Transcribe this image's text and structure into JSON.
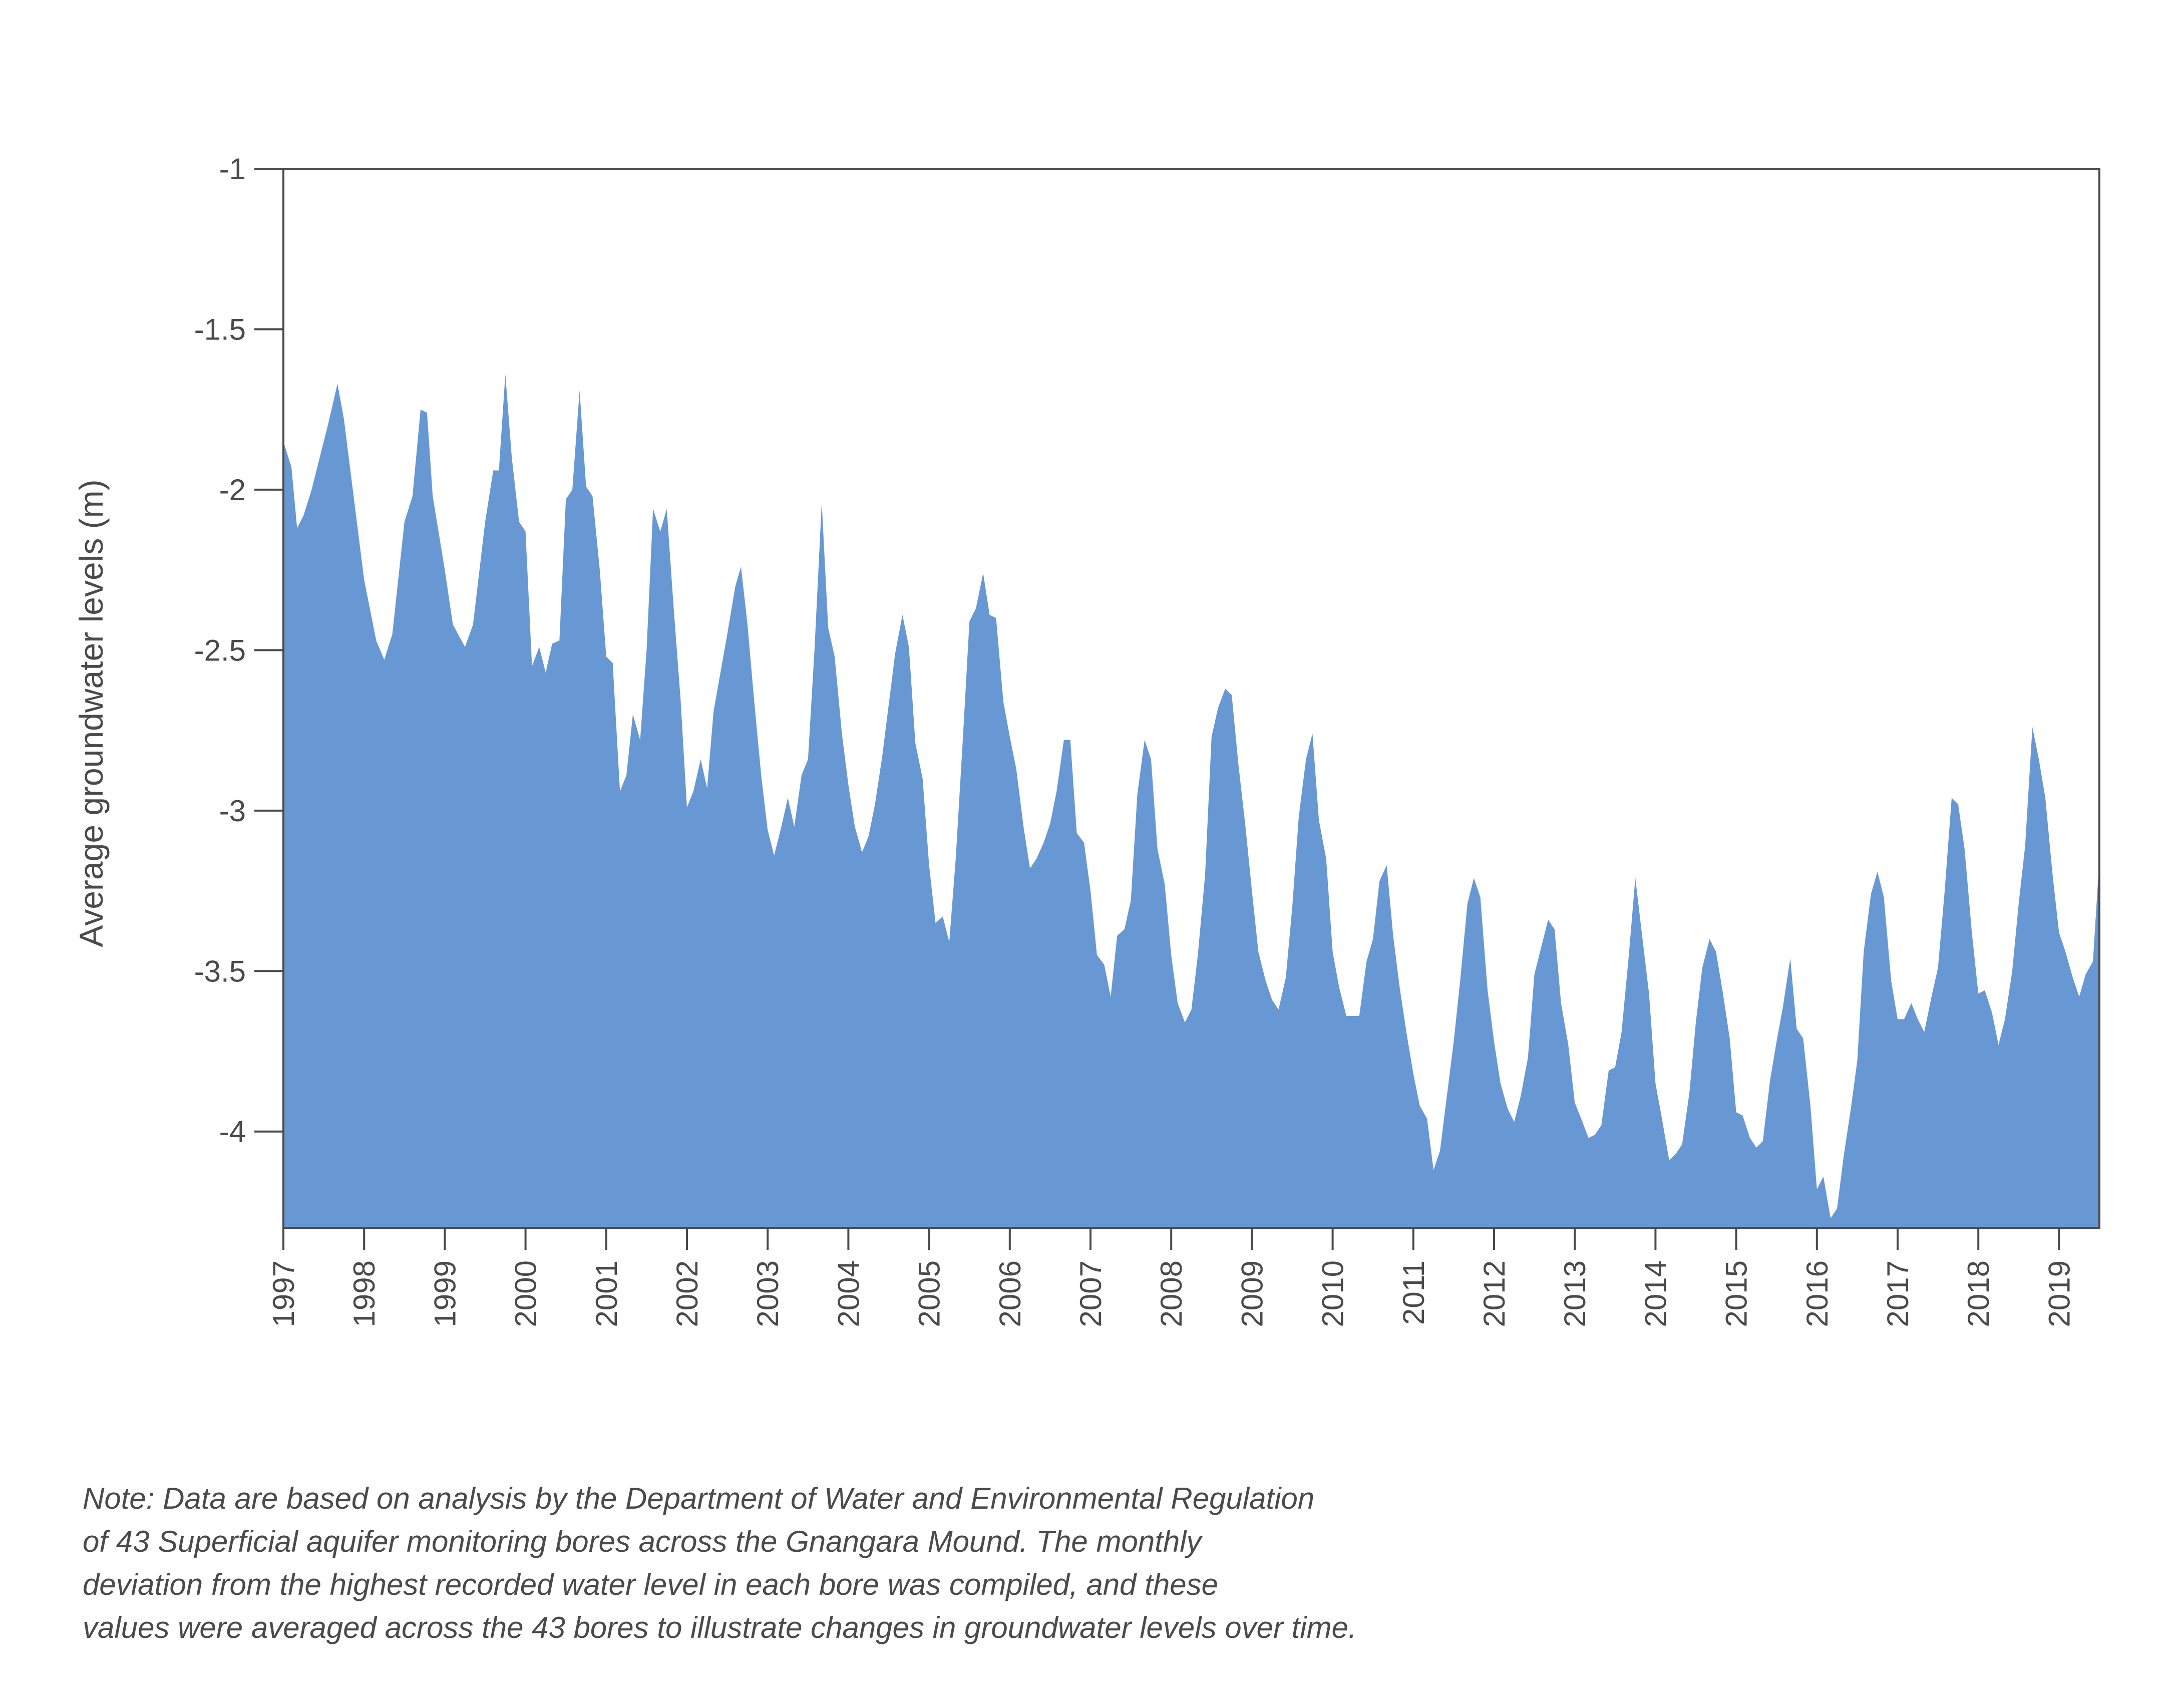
{
  "chart_data": {
    "type": "area",
    "title": "",
    "ylabel": "Average groundwater levels (m)",
    "xlabel": "",
    "ylim": [
      -4.3,
      -1
    ],
    "yticks": [
      -1,
      -1.5,
      -2,
      -2.5,
      -3,
      -3.5,
      -4
    ],
    "ytick_labels": [
      "-1",
      "-1.5",
      "-2",
      "-2.5",
      "-3",
      "-3.5",
      "-4"
    ],
    "xlim": [
      1997,
      2019.5
    ],
    "xticks": [
      1997,
      1998,
      1999,
      2000,
      2001,
      2002,
      2003,
      2004,
      2005,
      2006,
      2007,
      2008,
      2009,
      2010,
      2011,
      2012,
      2013,
      2014,
      2015,
      2016,
      2017,
      2018,
      2019
    ],
    "xtick_labels": [
      "1997",
      "1998",
      "1999",
      "2000",
      "2001",
      "2002",
      "2003",
      "2004",
      "2005",
      "2006",
      "2007",
      "2008",
      "2009",
      "2010",
      "2011",
      "2012",
      "2013",
      "2014",
      "2015",
      "2016",
      "2017",
      "2018",
      "2019"
    ],
    "fill_color": "#6898d4",
    "grid": false,
    "series": [
      {
        "x": [
          1997.0,
          1997.1,
          1997.17,
          1997.25,
          1997.35,
          1997.45,
          1997.55,
          1997.67,
          1997.75,
          1997.85,
          1998.0,
          1998.15,
          1998.25,
          1998.35,
          1998.5,
          1998.6,
          1998.7,
          1998.78,
          1998.85,
          1999.0,
          1999.1,
          1999.25,
          1999.35,
          1999.5,
          1999.6,
          1999.67,
          1999.75,
          1999.83,
          1999.92,
          2000.0,
          2000.08,
          2000.17,
          2000.25,
          2000.33,
          2000.42,
          2000.5,
          2000.58,
          2000.67,
          2000.75,
          2000.83,
          2000.92,
          2001.0,
          2001.08,
          2001.17,
          2001.25,
          2001.33,
          2001.42,
          2001.5,
          2001.58,
          2001.67,
          2001.75,
          2001.83,
          2001.92,
          2002.0,
          2002.08,
          2002.17,
          2002.25,
          2002.33,
          2002.5,
          2002.6,
          2002.67,
          2002.75,
          2002.83,
          2002.92,
          2003.0,
          2003.08,
          2003.17,
          2003.25,
          2003.33,
          2003.42,
          2003.5,
          2003.58,
          2003.67,
          2003.75,
          2003.83,
          2003.92,
          2004.0,
          2004.08,
          2004.17,
          2004.25,
          2004.33,
          2004.42,
          2004.5,
          2004.58,
          2004.67,
          2004.75,
          2004.83,
          2004.92,
          2005.0,
          2005.08,
          2005.17,
          2005.25,
          2005.33,
          2005.42,
          2005.5,
          2005.58,
          2005.67,
          2005.75,
          2005.83,
          2005.92,
          2006.0,
          2006.08,
          2006.17,
          2006.25,
          2006.33,
          2006.42,
          2006.5,
          2006.58,
          2006.67,
          2006.75,
          2006.83,
          2006.92,
          2007.0,
          2007.08,
          2007.17,
          2007.25,
          2007.33,
          2007.42,
          2007.5,
          2007.58,
          2007.67,
          2007.75,
          2007.83,
          2007.92,
          2008.0,
          2008.08,
          2008.17,
          2008.25,
          2008.33,
          2008.42,
          2008.5,
          2008.58,
          2008.67,
          2008.75,
          2008.83,
          2008.92,
          2009.0,
          2009.08,
          2009.17,
          2009.25,
          2009.33,
          2009.42,
          2009.5,
          2009.58,
          2009.67,
          2009.75,
          2009.83,
          2009.92,
          2010.0,
          2010.08,
          2010.17,
          2010.25,
          2010.33,
          2010.42,
          2010.5,
          2010.58,
          2010.67,
          2010.75,
          2010.83,
          2010.92,
          2011.0,
          2011.08,
          2011.17,
          2011.25,
          2011.33,
          2011.42,
          2011.5,
          2011.58,
          2011.67,
          2011.75,
          2011.83,
          2011.92,
          2012.0,
          2012.08,
          2012.17,
          2012.25,
          2012.33,
          2012.42,
          2012.5,
          2012.58,
          2012.67,
          2012.75,
          2012.83,
          2012.92,
          2013.0,
          2013.08,
          2013.17,
          2013.25,
          2013.33,
          2013.42,
          2013.5,
          2013.58,
          2013.67,
          2013.75,
          2013.83,
          2013.92,
          2014.0,
          2014.08,
          2014.17,
          2014.25,
          2014.33,
          2014.42,
          2014.5,
          2014.58,
          2014.67,
          2014.75,
          2014.83,
          2014.92,
          2015.0,
          2015.08,
          2015.17,
          2015.25,
          2015.33,
          2015.42,
          2015.5,
          2015.58,
          2015.67,
          2015.75,
          2015.83,
          2015.92,
          2016.0,
          2016.08,
          2016.17,
          2016.25,
          2016.33,
          2016.42,
          2016.5,
          2016.58,
          2016.67,
          2016.75,
          2016.83,
          2016.92,
          2017.0,
          2017.08,
          2017.17,
          2017.25,
          2017.33,
          2017.42,
          2017.5,
          2017.58,
          2017.67,
          2017.75,
          2017.83,
          2017.92,
          2018.0,
          2018.08,
          2018.17,
          2018.25,
          2018.33,
          2018.42,
          2018.5,
          2018.58,
          2018.67,
          2018.75,
          2018.83,
          2018.92,
          2019.0,
          2019.08,
          2019.17,
          2019.25,
          2019.33,
          2019.42,
          2019.5
        ],
        "y": [
          -1.85,
          -1.93,
          -2.12,
          -2.08,
          -2.0,
          -1.9,
          -1.8,
          -1.67,
          -1.78,
          -1.98,
          -2.28,
          -2.47,
          -2.53,
          -2.45,
          -2.1,
          -2.02,
          -1.75,
          -1.76,
          -2.02,
          -2.25,
          -2.42,
          -2.49,
          -2.42,
          -2.1,
          -1.94,
          -1.94,
          -1.64,
          -1.9,
          -2.1,
          -2.13,
          -2.55,
          -2.49,
          -2.57,
          -2.48,
          -2.47,
          -2.03,
          -2.0,
          -1.69,
          -1.99,
          -2.02,
          -2.25,
          -2.52,
          -2.54,
          -2.94,
          -2.89,
          -2.7,
          -2.78,
          -2.5,
          -2.06,
          -2.13,
          -2.06,
          -2.35,
          -2.65,
          -2.99,
          -2.94,
          -2.84,
          -2.93,
          -2.69,
          -2.45,
          -2.3,
          -2.24,
          -2.42,
          -2.65,
          -2.89,
          -3.06,
          -3.14,
          -3.05,
          -2.96,
          -3.05,
          -2.89,
          -2.84,
          -2.5,
          -2.04,
          -2.43,
          -2.52,
          -2.76,
          -2.92,
          -3.05,
          -3.13,
          -3.08,
          -2.98,
          -2.83,
          -2.67,
          -2.51,
          -2.39,
          -2.49,
          -2.79,
          -2.9,
          -3.17,
          -3.35,
          -3.33,
          -3.41,
          -3.15,
          -2.77,
          -2.41,
          -2.37,
          -2.26,
          -2.39,
          -2.4,
          -2.66,
          -2.77,
          -2.87,
          -3.05,
          -3.18,
          -3.15,
          -3.1,
          -3.04,
          -2.94,
          -2.78,
          -2.78,
          -3.07,
          -3.1,
          -3.25,
          -3.45,
          -3.48,
          -3.58,
          -3.39,
          -3.37,
          -3.28,
          -2.95,
          -2.78,
          -2.84,
          -3.12,
          -3.23,
          -3.45,
          -3.6,
          -3.66,
          -3.62,
          -3.45,
          -3.2,
          -2.77,
          -2.68,
          -2.62,
          -2.64,
          -2.85,
          -3.05,
          -3.25,
          -3.44,
          -3.53,
          -3.59,
          -3.62,
          -3.52,
          -3.3,
          -3.02,
          -2.84,
          -2.76,
          -3.03,
          -3.15,
          -3.44,
          -3.55,
          -3.64,
          -3.64,
          -3.64,
          -3.47,
          -3.4,
          -3.22,
          -3.17,
          -3.39,
          -3.55,
          -3.7,
          -3.82,
          -3.92,
          -3.96,
          -4.12,
          -4.06,
          -3.88,
          -3.72,
          -3.53,
          -3.29,
          -3.21,
          -3.27,
          -3.56,
          -3.72,
          -3.85,
          -3.93,
          -3.97,
          -3.89,
          -3.77,
          -3.51,
          -3.43,
          -3.34,
          -3.37,
          -3.6,
          -3.73,
          -3.91,
          -3.96,
          -4.02,
          -4.01,
          -3.98,
          -3.81,
          -3.8,
          -3.69,
          -3.45,
          -3.21,
          -3.38,
          -3.57,
          -3.85,
          -3.96,
          -4.09,
          -4.07,
          -4.04,
          -3.88,
          -3.66,
          -3.49,
          -3.4,
          -3.44,
          -3.56,
          -3.71,
          -3.94,
          -3.95,
          -4.02,
          -4.05,
          -4.03,
          -3.84,
          -3.72,
          -3.61,
          -3.46,
          -3.68,
          -3.71,
          -3.92,
          -4.18,
          -4.14,
          -4.27,
          -4.24,
          -4.08,
          -3.93,
          -3.78,
          -3.44,
          -3.26,
          -3.19,
          -3.27,
          -3.53,
          -3.65,
          -3.65,
          -3.6,
          -3.65,
          -3.69,
          -3.58,
          -3.49,
          -3.26,
          -2.96,
          -2.98,
          -3.12,
          -3.38,
          -3.57,
          -3.56,
          -3.63,
          -3.73,
          -3.65,
          -3.5,
          -3.29,
          -3.11,
          -2.74,
          -2.84,
          -2.96,
          -3.2,
          -3.38,
          -3.44,
          -3.52,
          -3.58,
          -3.51,
          -3.47,
          -3.15
        ]
      }
    ]
  },
  "note": {
    "lines": [
      "Note: Data are based on analysis by the Department of Water and Environmental Regulation",
      "of 43 Superficial aquifer monitoring bores across the Gnangara Mound. The monthly",
      "deviation from the highest recorded water level in each bore was compiled, and these",
      "values were averaged across the 43 bores to illustrate changes in groundwater levels over time."
    ]
  }
}
